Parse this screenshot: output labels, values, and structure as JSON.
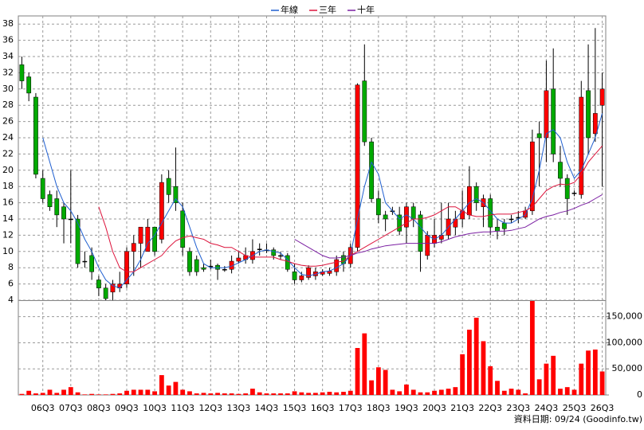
{
  "chart_data": {
    "type": "candlestick",
    "categories": [
      null,
      null,
      null,
      "06Q3",
      null,
      null,
      null,
      "07Q3",
      null,
      null,
      null,
      "08Q3",
      null,
      null,
      null,
      "09Q3",
      null,
      null,
      null,
      "10Q3",
      null,
      null,
      null,
      "11Q3",
      null,
      null,
      null,
      "12Q3",
      null,
      null,
      null,
      "13Q3",
      null,
      null,
      null,
      "14Q3",
      null,
      null,
      null,
      "15Q3",
      null,
      null,
      null,
      "16Q3",
      null,
      null,
      null,
      "17Q3",
      null,
      null,
      null,
      "18Q3",
      null,
      null,
      null,
      "19Q3",
      null,
      null,
      null,
      "20Q3",
      null,
      null,
      null,
      "21Q3",
      null,
      null,
      null,
      "22Q3",
      null,
      null,
      null,
      "23Q3",
      null,
      null,
      null,
      "24Q3",
      null,
      null,
      null,
      "25Q3",
      null,
      null,
      null,
      "26Q3"
    ],
    "open": [
      33,
      31.5,
      29,
      19,
      17,
      16.5,
      15.5,
      14,
      14,
      8.8,
      9.5,
      6.5,
      5.5,
      5,
      5.5,
      6,
      10,
      11,
      10,
      13,
      11.5,
      19,
      18,
      15,
      10,
      9,
      8,
      8.2,
      8.3,
      7.8,
      7.8,
      8.8,
      9,
      9,
      10.3,
      10.2,
      10.2,
      9.5,
      9.5,
      7.5,
      6.5,
      6.8,
      7,
      7.2,
      7.3,
      7.5,
      9.5,
      8.5,
      10.5,
      31,
      23.5,
      16.5,
      14.5,
      15,
      14.5,
      13,
      15.5,
      14.5,
      9.5,
      11,
      11.5,
      12,
      13,
      14,
      14.5,
      18,
      15.5,
      16.5,
      13,
      13.5,
      14,
      14.2,
      14.2,
      15,
      24.5,
      24,
      30,
      21,
      19,
      17.2,
      17,
      29.8,
      24.5,
      28
    ],
    "high": [
      34,
      32,
      29.5,
      20,
      17.5,
      17.5,
      16,
      20,
      14.5,
      10,
      10.5,
      7,
      6,
      6.5,
      7.5,
      10.5,
      12,
      13,
      14,
      13,
      19.5,
      20,
      22.8,
      16,
      10.5,
      9.5,
      8.5,
      9,
      8.5,
      8.2,
      9.5,
      10,
      10.5,
      11.5,
      11,
      11,
      10.5,
      10,
      9.8,
      8.5,
      7.5,
      8.3,
      8,
      7.8,
      8,
      9.5,
      10,
      11,
      30.7,
      35.5,
      24,
      17.5,
      15,
      15.5,
      15.5,
      16,
      16,
      15,
      12.5,
      14,
      16,
      16,
      15,
      17.5,
      20.5,
      18.5,
      17,
      17,
      14,
      14,
      14.5,
      15,
      15.5,
      25,
      26,
      33.5,
      35,
      23,
      19.5,
      17.5,
      31,
      35.5,
      37.5,
      32
    ],
    "low": [
      30,
      28.5,
      19,
      16,
      15,
      13,
      11,
      11,
      8,
      8,
      6.5,
      4.5,
      4,
      4,
      5,
      5.5,
      7,
      8,
      10,
      9.5,
      11,
      16,
      15,
      9.5,
      7,
      7,
      7.5,
      7.8,
      6.5,
      7.5,
      7.3,
      8.5,
      8.5,
      8.5,
      9.5,
      9.8,
      9,
      9,
      7.5,
      6,
      6.2,
      6.5,
      6.5,
      7,
      7,
      7,
      7.5,
      8,
      10,
      23,
      16,
      13.5,
      12.5,
      14.5,
      12,
      11,
      13,
      7.5,
      9,
      10.5,
      11,
      11.5,
      12,
      13,
      14,
      15,
      13,
      12,
      11.5,
      12,
      13.5,
      13.5,
      14,
      14.5,
      18,
      21,
      21,
      18,
      14.5,
      16.8,
      16.5,
      22,
      23.5,
      18
    ],
    "close": [
      31,
      29.5,
      19.5,
      16.5,
      15.5,
      14.5,
      14,
      14,
      8.5,
      8.8,
      7.5,
      5.5,
      4.2,
      6,
      6,
      10,
      11,
      13,
      13,
      10,
      18.5,
      17,
      16,
      10.5,
      7.5,
      7.5,
      7.8,
      8.2,
      7.8,
      7.8,
      8.8,
      9.2,
      9.5,
      10,
      10.3,
      10.2,
      9.5,
      9.5,
      7.8,
      6.5,
      7,
      8,
      7.5,
      7.5,
      7.6,
      9,
      8.5,
      10.5,
      30.5,
      23.5,
      16.5,
      14.5,
      14,
      15,
      12.5,
      15.5,
      14,
      10,
      12,
      12,
      12,
      14,
      14,
      15,
      18,
      16,
      16.5,
      13,
      12.5,
      12.8,
      14,
      14.2,
      15,
      23.5,
      24,
      29.8,
      22,
      19,
      16.5,
      17.2,
      29,
      24,
      27,
      30
    ],
    "up_color": "#ff0000",
    "down_color": "#00aa00",
    "flat_color": "#000000",
    "series": [
      {
        "name": "年線",
        "color": "#1f5fd0",
        "values": [
          null,
          null,
          null,
          24,
          21,
          18,
          16,
          15,
          13.5,
          11.5,
          10,
          8,
          6.5,
          5.8,
          5.5,
          6.5,
          7.5,
          9,
          11,
          12,
          13.5,
          15,
          16.5,
          15.5,
          13,
          10.5,
          8.5,
          8,
          8,
          8,
          8.2,
          8.6,
          9,
          9.5,
          10,
          10.2,
          10,
          9.8,
          9,
          8,
          7.2,
          7,
          7.2,
          7.5,
          7.6,
          8,
          8.5,
          9.5,
          14,
          18,
          21,
          19.5,
          16,
          15,
          14,
          14.5,
          14,
          13,
          12,
          11.5,
          12,
          13,
          14,
          15,
          16,
          16.5,
          16,
          15,
          14,
          13.5,
          13.5,
          14,
          14.5,
          16.5,
          20,
          24.5,
          25,
          24,
          21,
          19,
          20,
          22,
          24,
          27
        ]
      },
      {
        "name": "三年",
        "color": "#dc143c",
        "values": [
          null,
          null,
          null,
          null,
          null,
          null,
          null,
          null,
          null,
          null,
          null,
          15.5,
          13,
          10,
          8,
          7.5,
          7.5,
          8,
          8.5,
          9,
          9.5,
          10.5,
          11.3,
          11.7,
          11.9,
          11.7,
          11.5,
          11,
          10.8,
          10.5,
          10.5,
          10,
          9.5,
          9.3,
          9.3,
          9.3,
          9.3,
          9,
          8.8,
          8.5,
          8.3,
          8.2,
          8.2,
          8.3,
          8.5,
          8.7,
          8.8,
          9.5,
          10,
          10.5,
          11,
          11.5,
          12,
          12.5,
          13,
          13.5,
          14,
          14,
          14.2,
          14.5,
          15,
          15.5,
          15.5,
          15,
          14.5,
          14.3,
          14.3,
          14.5,
          14.6,
          14.6,
          14.6,
          14.8,
          15,
          15.5,
          16.5,
          17.5,
          18,
          18.3,
          18.2,
          18.5,
          19.5,
          21,
          22,
          23
        ]
      },
      {
        "name": "十年",
        "color": "#7b1fa2",
        "values": [
          null,
          null,
          null,
          null,
          null,
          null,
          null,
          null,
          null,
          null,
          null,
          null,
          null,
          null,
          null,
          null,
          null,
          null,
          null,
          null,
          null,
          null,
          null,
          null,
          null,
          null,
          null,
          null,
          null,
          null,
          null,
          null,
          null,
          null,
          null,
          null,
          null,
          null,
          null,
          11.5,
          11,
          10.5,
          10,
          9.5,
          9.2,
          9.2,
          9.3,
          9.5,
          9.8,
          10,
          10.3,
          10.5,
          10.7,
          10.8,
          10.9,
          11,
          11,
          11,
          11,
          11,
          11.2,
          11.5,
          11.8,
          12,
          12.2,
          12.3,
          12.4,
          12.4,
          12.5,
          12.5,
          12.6,
          12.8,
          13,
          13.5,
          14,
          14.3,
          14.5,
          14.8,
          15,
          15.3,
          15.7,
          16,
          16.5,
          17
        ]
      }
    ],
    "volume": {
      "color": "#ff0000",
      "axis": "y2",
      "values": [
        2000,
        8000,
        3000,
        4000,
        10000,
        4000,
        10000,
        15000,
        5000,
        1000,
        2000,
        1000,
        1000,
        2000,
        3000,
        8000,
        10000,
        10000,
        10000,
        7000,
        38000,
        18000,
        25000,
        10000,
        7000,
        3000,
        4000,
        3000,
        4000,
        3000,
        3000,
        2000,
        3000,
        12000,
        5000,
        3000,
        3000,
        3000,
        3000,
        7000,
        5000,
        4000,
        4000,
        5000,
        6000,
        5000,
        6000,
        8000,
        90000,
        118000,
        28000,
        53000,
        48000,
        10000,
        7000,
        20000,
        10000,
        5000,
        5000,
        8000,
        10000,
        12000,
        15000,
        78000,
        125000,
        148000,
        103000,
        55000,
        27000,
        8000,
        12000,
        10000,
        3000,
        180000,
        30000,
        60000,
        75000,
        12000,
        15000,
        10000,
        60000,
        85000,
        87000,
        45000
      ]
    },
    "ylim": [
      4,
      39
    ],
    "yticks": [
      4,
      6,
      8,
      10,
      12,
      14,
      16,
      18,
      20,
      22,
      24,
      26,
      28,
      30,
      32,
      34,
      36,
      38
    ],
    "y2lim": [
      0,
      180000
    ],
    "y2ticks": [
      0,
      {
        "value": 50000,
        "label": "50,000"
      },
      {
        "value": 100000,
        "label": "100,000"
      },
      {
        "value": 150000,
        "label": "150,000"
      }
    ],
    "grid": true,
    "legend": "top",
    "note": "資料日期: 09/24 (Goodinfo.tw)"
  }
}
